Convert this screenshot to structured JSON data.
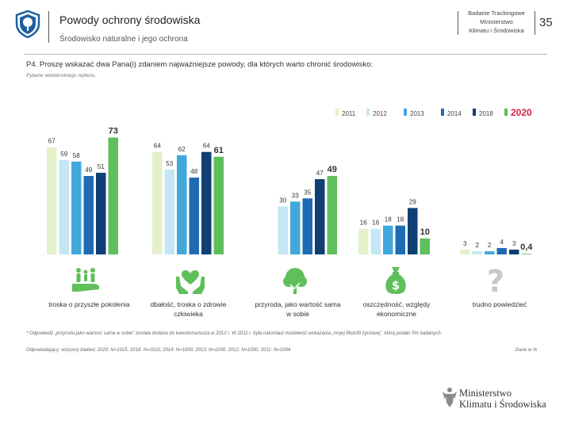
{
  "header": {
    "title": "Powody ochrony środowiska",
    "subtitle": "Środowisko naturalne i jego ochrona",
    "survey_lines": [
      "Badanie Trackingowe",
      "Ministerstwo",
      "Klimatu i Środowiska"
    ],
    "page_number": "35"
  },
  "question": "P4. Proszę wskazać dwa Pana(i) zdaniem najważniejsze powody, dla których warto chronić środowisko:",
  "question_note": "Pytanie wielokrotnego wyboru.",
  "colors": {
    "2011": "#e4f0c9",
    "2012": "#c4e6f5",
    "2013": "#41a8dc",
    "2014": "#1f6bb3",
    "2018": "#0f3f73",
    "2020": "#5fbf5a",
    "icon": "#5fbf5a"
  },
  "chart_data": {
    "type": "bar",
    "legend_position": "top-right",
    "categories": [
      "troska o przyszłe pokolenia",
      "dbałość, troska o zdrowie człowieka",
      "przyroda, jako wartość sama w sobie",
      "oszczędność, względy ekonomiczne",
      "trudno powiedzieć"
    ],
    "category_icons": [
      "family-hand-icon",
      "heart-hands-icon",
      "tree-icon",
      "money-bag-icon",
      "question-mark-icon"
    ],
    "series": [
      {
        "name": "2011",
        "values": [
          67,
          64,
          null,
          16,
          3
        ]
      },
      {
        "name": "2012",
        "values": [
          59,
          53,
          30,
          16,
          2
        ]
      },
      {
        "name": "2013",
        "values": [
          58,
          62,
          33,
          18,
          2
        ]
      },
      {
        "name": "2014",
        "values": [
          49,
          48,
          35,
          18,
          4
        ]
      },
      {
        "name": "2018",
        "values": [
          51,
          64,
          47,
          29,
          3
        ]
      },
      {
        "name": "2020",
        "values": [
          73,
          61,
          49,
          10,
          0.4
        ]
      }
    ],
    "value_labels": [
      [
        "67",
        "64",
        "",
        "16",
        "3"
      ],
      [
        "59",
        "53",
        "30",
        "16",
        "2"
      ],
      [
        "58",
        "62",
        "33",
        "18",
        "2"
      ],
      [
        "49",
        "48",
        "35",
        "18",
        "4"
      ],
      [
        "51",
        "64",
        "47",
        "29",
        "3"
      ],
      [
        "73",
        "61",
        "49",
        "10",
        "0,4"
      ]
    ],
    "ylim": [
      0,
      80
    ]
  },
  "footnote": "* Odpowiedź „przyroda jako wartość sama w sobie” została dodana do kwestionariusza w 2012 r. W 2011 r. była natomiast możliwość wskazania „mojej filozofii życiowej”, którą podało 5% badanych.",
  "respondents": "Odpowiadający: wszyscy badani; 2020: N=1015, 2018: N=1010, 2014: N=1000, 2013: N=1000, 2012: N=1000, 2011: N=1004",
  "source": "Dane w %",
  "ministry": [
    "Ministerstwo",
    "Klimatu i Środowiska"
  ]
}
